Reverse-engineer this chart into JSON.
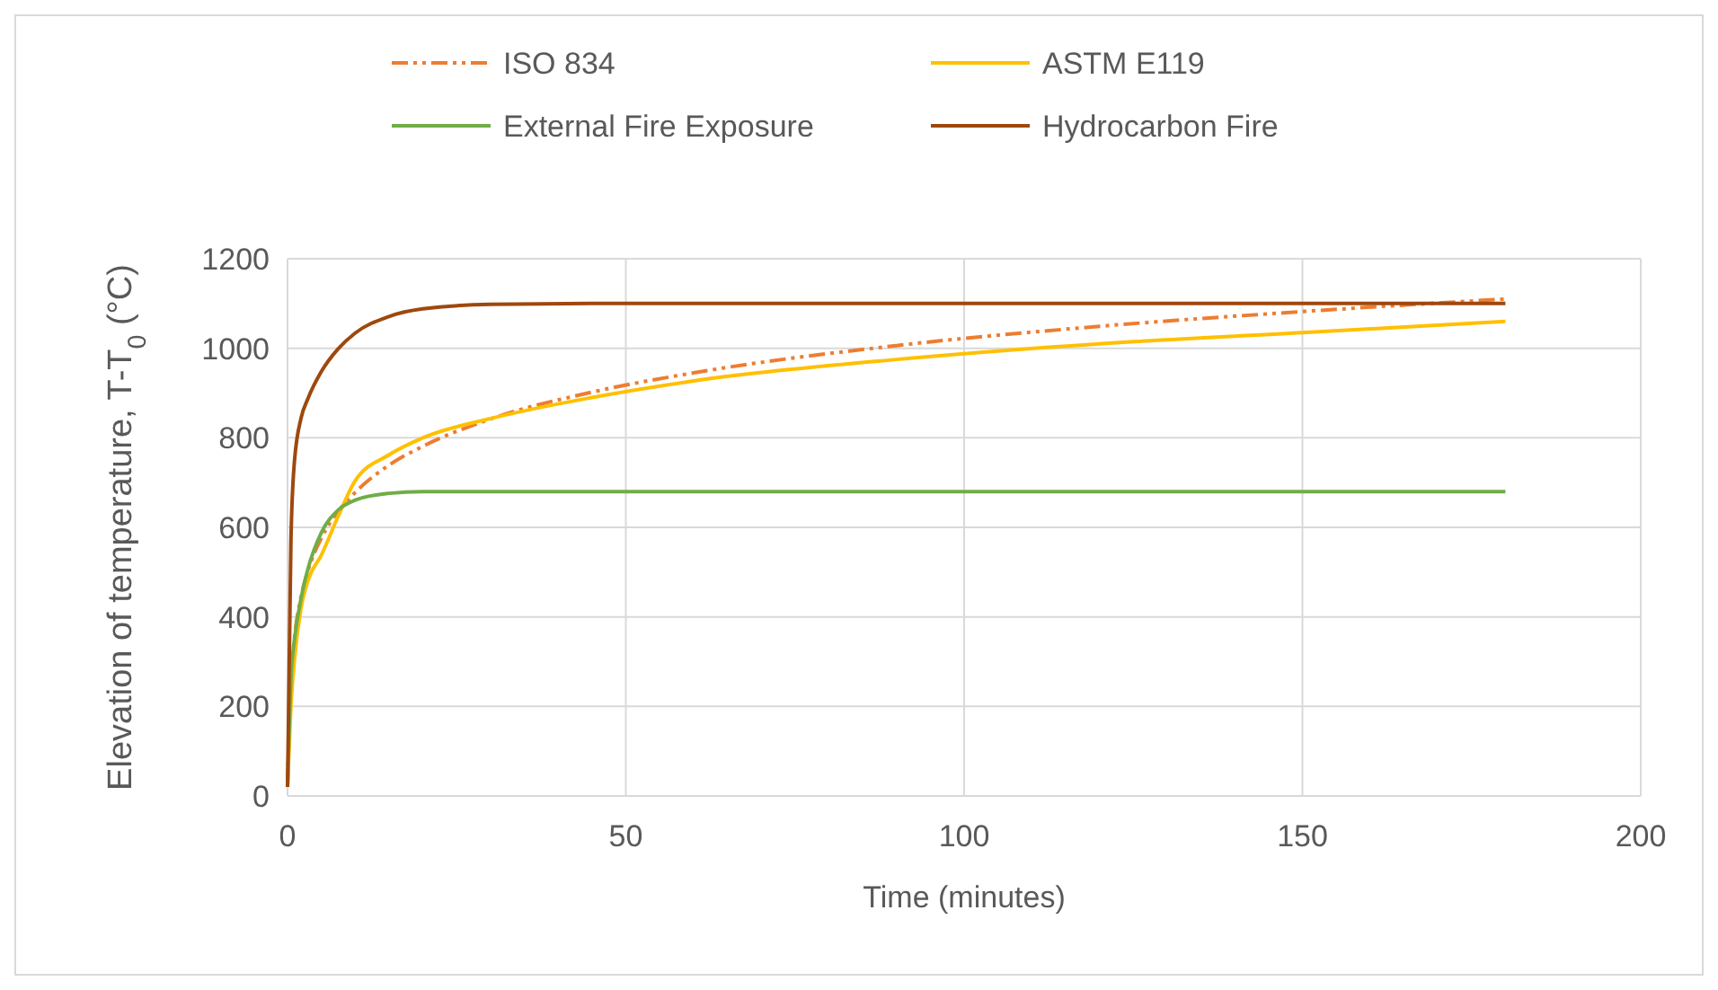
{
  "chart_data": {
    "type": "line",
    "xlabel": "Time (minutes)",
    "ylabel": "Elevation of temperature, T-T$_{0}$ (°C)",
    "x": [
      0,
      0.5,
      1,
      2,
      3,
      5,
      7.5,
      10,
      15,
      20,
      30,
      45,
      60,
      90,
      120,
      150,
      180
    ],
    "series": [
      {
        "name": "ISO 834",
        "color": "#ed7d31",
        "line_style": "dashed",
        "values": [
          20,
          261,
          349,
          445,
          502,
          576,
          636,
          678,
          739,
          781,
          842,
          902,
          945,
          1006,
          1049,
          1082,
          1110
        ]
      },
      {
        "name": "ASTM E119",
        "color": "#ffc000",
        "values": [
          20,
          200,
          300,
          420,
          480,
          538,
          625,
          704,
          762,
          800,
          843,
          890,
          927,
          975,
          1010,
          1035,
          1060
        ]
      },
      {
        "name": "External Fire Exposure",
        "color": "#70ad47",
        "values": [
          20,
          263,
          346,
          441,
          506,
          588,
          639,
          661,
          676,
          680,
          680,
          680,
          680,
          680,
          680,
          680,
          680
        ]
      },
      {
        "name": "Hydrocarbon Fire",
        "color": "#9e480e",
        "values": [
          20,
          568,
          743,
          844,
          887,
          948,
          999,
          1034,
          1071,
          1088,
          1098,
          1100,
          1100,
          1100,
          1100,
          1100,
          1100
        ]
      }
    ],
    "xlim": [
      0,
      200
    ],
    "xticks": [
      0,
      50,
      100,
      150,
      200
    ],
    "ylim": [
      0,
      1200
    ],
    "yticks": [
      0,
      200,
      400,
      600,
      800,
      1000,
      1200
    ],
    "grid": true,
    "legend": "top",
    "line_style": "solid"
  }
}
